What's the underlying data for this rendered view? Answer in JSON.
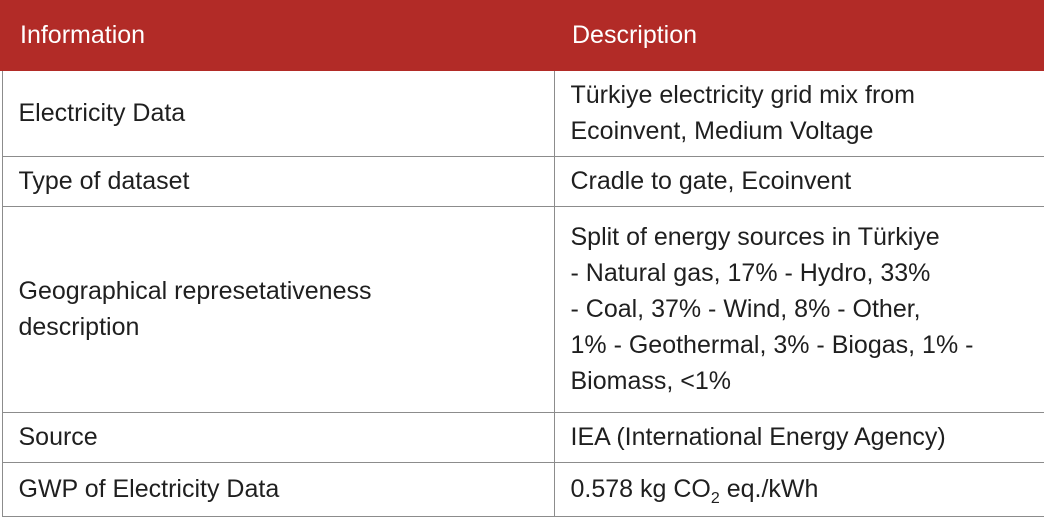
{
  "table": {
    "headers": [
      "Information",
      "Description"
    ],
    "rows": [
      {
        "information": "Electricity Data",
        "description_lines": [
          "Türkiye electricity grid mix from",
          "Ecoinvent, Medium Voltage"
        ]
      },
      {
        "information": "Type of dataset",
        "description_lines": [
          "Cradle to gate, Ecoinvent"
        ]
      },
      {
        "information_lines": [
          "Geographical represetativeness",
          "description"
        ],
        "description_lines": [
          "Split of energy sources in Türkiye",
          "- Natural gas, 17% - Hydro, 33%",
          "- Coal, 37% - Wind, 8% - Other,",
          "1% - Geothermal, 3% - Biogas, 1% -",
          "Biomass, <1%"
        ]
      },
      {
        "information": "Source",
        "description_lines": [
          "IEA (International Energy Agency)"
        ]
      },
      {
        "information": "GWP of Electricity Data",
        "description_parts": {
          "before": "0.578 kg CO",
          "subscript": "2",
          "after": " eq./kWh"
        }
      }
    ]
  },
  "colors": {
    "header_background": "#b22b27",
    "header_text": "#ffffff",
    "border": "#8c8c8c"
  }
}
